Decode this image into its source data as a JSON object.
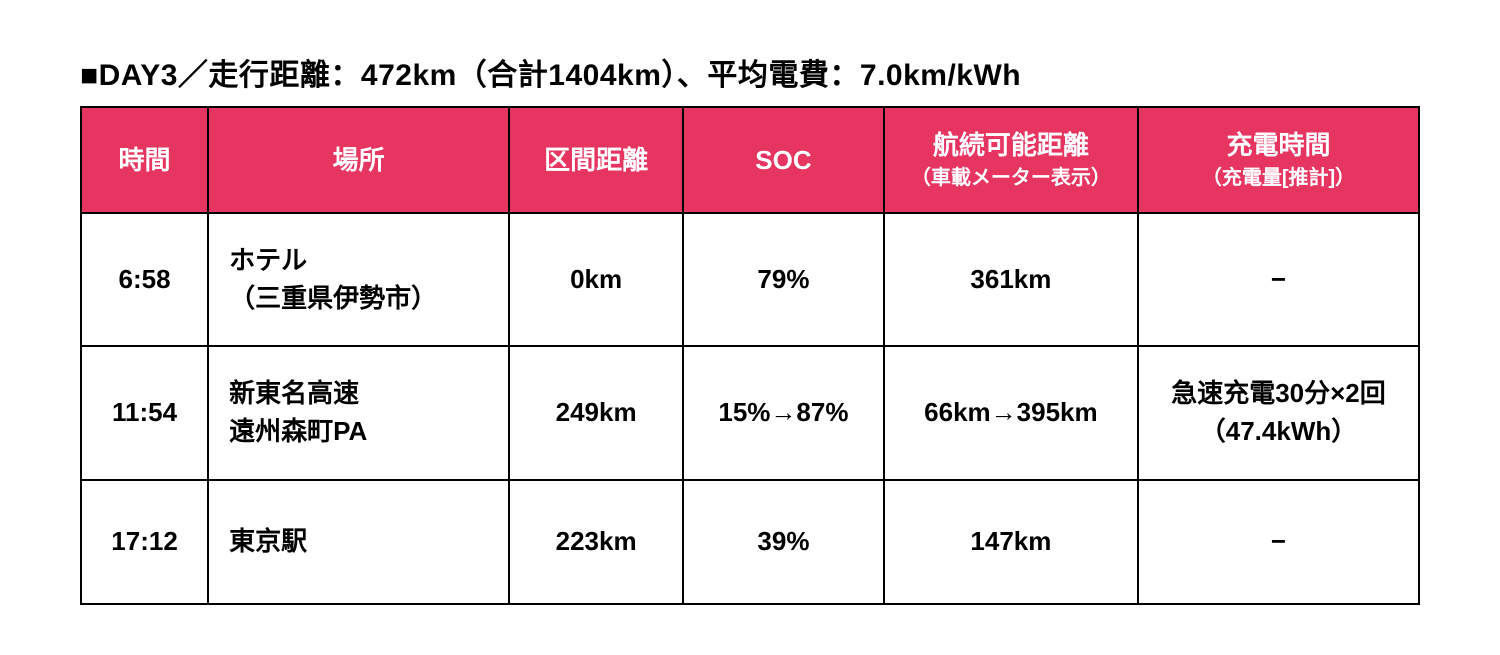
{
  "title": "■DAY3／走行距離：472km（合計1404km）、平均電費：7.0km/kWh",
  "table": {
    "header_bg": "#e73562",
    "header_fg": "#ffffff",
    "border_color": "#000000",
    "cell_bg": "#ffffff",
    "columns": [
      {
        "main": "時間",
        "sub": ""
      },
      {
        "main": "場所",
        "sub": ""
      },
      {
        "main": "区間距離",
        "sub": ""
      },
      {
        "main": "SOC",
        "sub": ""
      },
      {
        "main": "航続可能距離",
        "sub": "（車載メーター表示）"
      },
      {
        "main": "充電時間",
        "sub": "（充電量[推計]）"
      }
    ],
    "rows": [
      {
        "time": "6:58",
        "location_l1": "ホテル",
        "location_l2": "（三重県伊勢市）",
        "distance": "0km",
        "soc": "79%",
        "range": "361km",
        "charge_l1": "−",
        "charge_l2": ""
      },
      {
        "time": "11:54",
        "location_l1": "新東名高速",
        "location_l2": "遠州森町PA",
        "distance": "249km",
        "soc": "15%→87%",
        "range": "66km→395km",
        "charge_l1": "急速充電30分×2回",
        "charge_l2": "（47.4kWh）"
      },
      {
        "time": "17:12",
        "location_l1": "東京駅",
        "location_l2": "",
        "distance": "223km",
        "soc": "39%",
        "range": "147km",
        "charge_l1": "−",
        "charge_l2": ""
      }
    ]
  }
}
